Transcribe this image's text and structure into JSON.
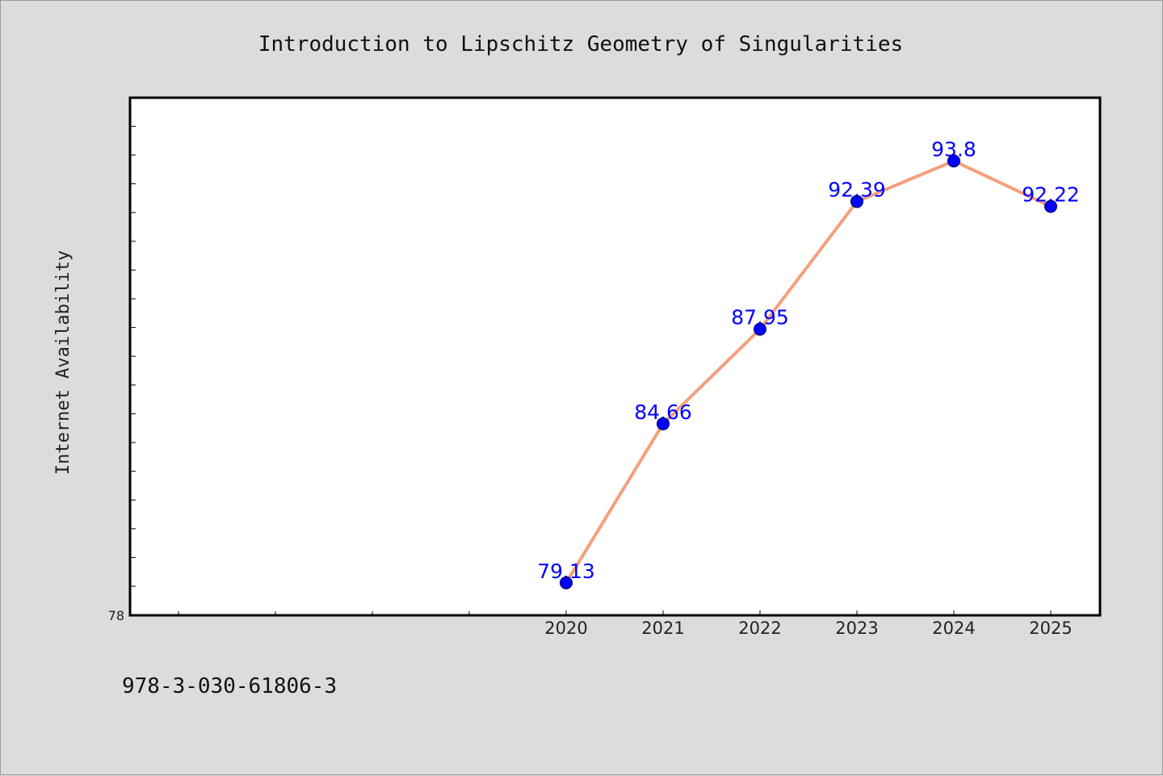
{
  "footer": {
    "isbn": "978-3-030-61806-3"
  },
  "chart_data": {
    "type": "line",
    "title": "Introduction to Lipschitz Geometry of Singularities",
    "xlabel": "",
    "ylabel": "Internet Availability",
    "categories": [
      "2020",
      "2021",
      "2022",
      "2023",
      "2024",
      "2025"
    ],
    "series": [
      {
        "values": [
          79.13,
          84.66,
          87.95,
          92.39,
          93.8,
          92.22
        ]
      }
    ],
    "data_labels": [
      "79.13",
      "84.66",
      "87.95",
      "92.39",
      "93.8",
      "92.22"
    ],
    "y_tick_labels": [
      "78"
    ],
    "ylim": [
      78,
      96
    ],
    "grid": false,
    "legend": "none",
    "colors": {
      "line": "#f4a07c",
      "marker": "#0000ff",
      "data_label": "#0000ff",
      "plot_background": "#ffffff",
      "page_background": "#dcdcdc"
    }
  }
}
